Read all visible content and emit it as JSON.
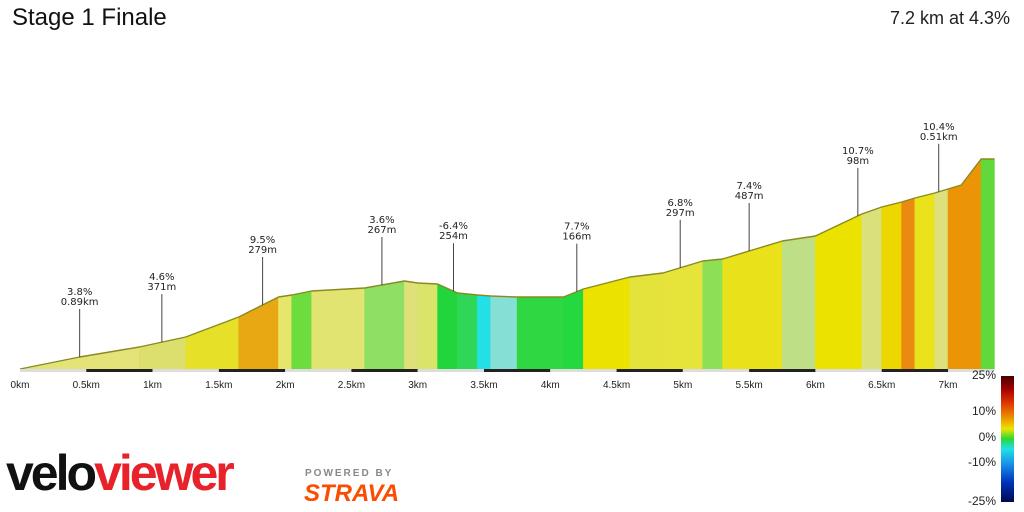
{
  "header": {
    "title": "Stage 1 Finale",
    "summary": "7.2 km at 4.3%"
  },
  "branding": {
    "logo_black": "velo",
    "logo_red": "viewer",
    "powered_by": "POWERED BY",
    "strava": "STRAVA"
  },
  "chart_data": {
    "type": "area",
    "title": "Stage 1 Finale",
    "xlabel": "",
    "ylabel": "",
    "x_unit": "km",
    "xlim": [
      0,
      7.35
    ],
    "x_ticks": [
      "0km",
      "0.5km",
      "1km",
      "1.5km",
      "2km",
      "2.5km",
      "3km",
      "3.5km",
      "4km",
      "4.5km",
      "5km",
      "5.5km",
      "6km",
      "6.5km",
      "7km"
    ],
    "x_tick_values": [
      0,
      0.5,
      1,
      1.5,
      2,
      2.5,
      3,
      3.5,
      4,
      4.5,
      5,
      5.5,
      6,
      6.5,
      7
    ],
    "elevation_rel": [
      [
        0.0,
        0
      ],
      [
        0.45,
        12
      ],
      [
        0.9,
        22
      ],
      [
        1.25,
        32
      ],
      [
        1.65,
        52
      ],
      [
        1.95,
        72
      ],
      [
        2.05,
        74
      ],
      [
        2.2,
        78
      ],
      [
        2.6,
        81
      ],
      [
        2.9,
        88
      ],
      [
        3.0,
        86
      ],
      [
        3.15,
        85
      ],
      [
        3.3,
        76
      ],
      [
        3.45,
        74
      ],
      [
        3.55,
        73
      ],
      [
        3.75,
        72
      ],
      [
        4.1,
        72
      ],
      [
        4.25,
        80
      ],
      [
        4.6,
        92
      ],
      [
        4.85,
        96
      ],
      [
        5.15,
        108
      ],
      [
        5.3,
        110
      ],
      [
        5.75,
        128
      ],
      [
        6.0,
        133
      ],
      [
        6.35,
        155
      ],
      [
        6.5,
        162
      ],
      [
        6.65,
        167
      ],
      [
        6.75,
        171
      ],
      [
        6.9,
        176
      ],
      [
        7.0,
        180
      ],
      [
        7.1,
        184
      ],
      [
        7.25,
        210
      ],
      [
        7.35,
        210
      ]
    ],
    "segment_colors": [
      "#e4e37a",
      "#e4e37a",
      "#dcdf6e",
      "#e6e028",
      "#e8a814",
      "#e6e66a",
      "#6ddc3e",
      "#e1e470",
      "#8fdf65",
      "#dee078",
      "#d9e46a",
      "#22d53c",
      "#2fd756",
      "#22e0e6",
      "#86dfd4",
      "#2fd743",
      "#24d940",
      "#ece200",
      "#e4e33b",
      "#e6e33b",
      "#8ddf55",
      "#e9e21a",
      "#bedf86",
      "#ece200",
      "#dae07a",
      "#ecd800",
      "#ea8a10",
      "#eae21a",
      "#dee07e",
      "#ea9406",
      "#ea9406",
      "#62d93a"
    ],
    "annotations": [
      {
        "x": 0.45,
        "gradient": "3.8%",
        "length": "0.89km"
      },
      {
        "x": 1.07,
        "gradient": "4.6%",
        "length": "371m"
      },
      {
        "x": 1.83,
        "gradient": "9.5%",
        "length": "279m"
      },
      {
        "x": 2.73,
        "gradient": "3.6%",
        "length": "267m"
      },
      {
        "x": 3.27,
        "gradient": "-6.4%",
        "length": "254m"
      },
      {
        "x": 4.2,
        "gradient": "7.7%",
        "length": "166m"
      },
      {
        "x": 4.98,
        "gradient": "6.8%",
        "length": "297m"
      },
      {
        "x": 5.5,
        "gradient": "7.4%",
        "length": "487m"
      },
      {
        "x": 6.32,
        "gradient": "10.7%",
        "length": "98m"
      },
      {
        "x": 6.93,
        "gradient": "10.4%",
        "length": "0.51km"
      }
    ],
    "legend": {
      "placement": "right",
      "labels": [
        "25%",
        "10%",
        "0%",
        "-10%",
        "-25%"
      ],
      "values": [
        25,
        10,
        0,
        -10,
        -25
      ]
    },
    "grid": false
  }
}
